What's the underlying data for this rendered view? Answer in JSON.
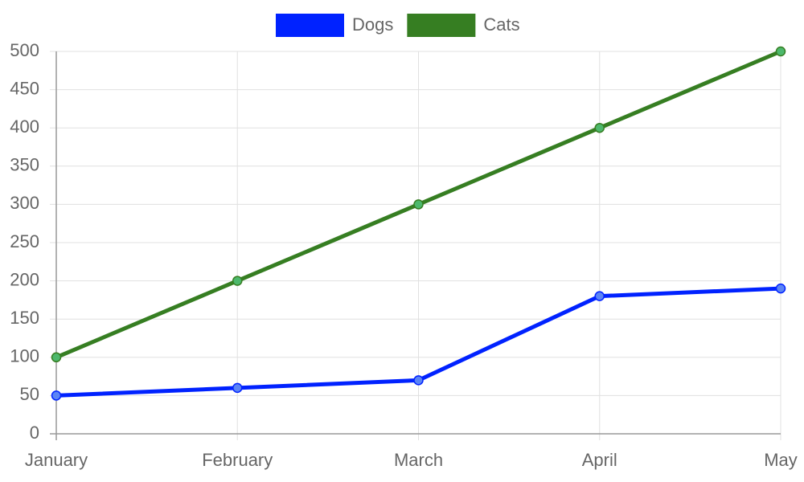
{
  "chart_data": {
    "type": "line",
    "categories": [
      "January",
      "February",
      "March",
      "April",
      "May"
    ],
    "series": [
      {
        "name": "Dogs",
        "color": "#0022ff",
        "point_color": "#5b84f5",
        "values": [
          50,
          60,
          70,
          180,
          190
        ]
      },
      {
        "name": "Cats",
        "color": "#367e22",
        "point_color": "#4db86c",
        "values": [
          100,
          200,
          300,
          400,
          500
        ]
      }
    ],
    "ylim": [
      0,
      500
    ],
    "yticks": [
      0,
      50,
      100,
      150,
      200,
      250,
      300,
      350,
      400,
      450,
      500
    ],
    "grid": true,
    "legend": "top"
  }
}
